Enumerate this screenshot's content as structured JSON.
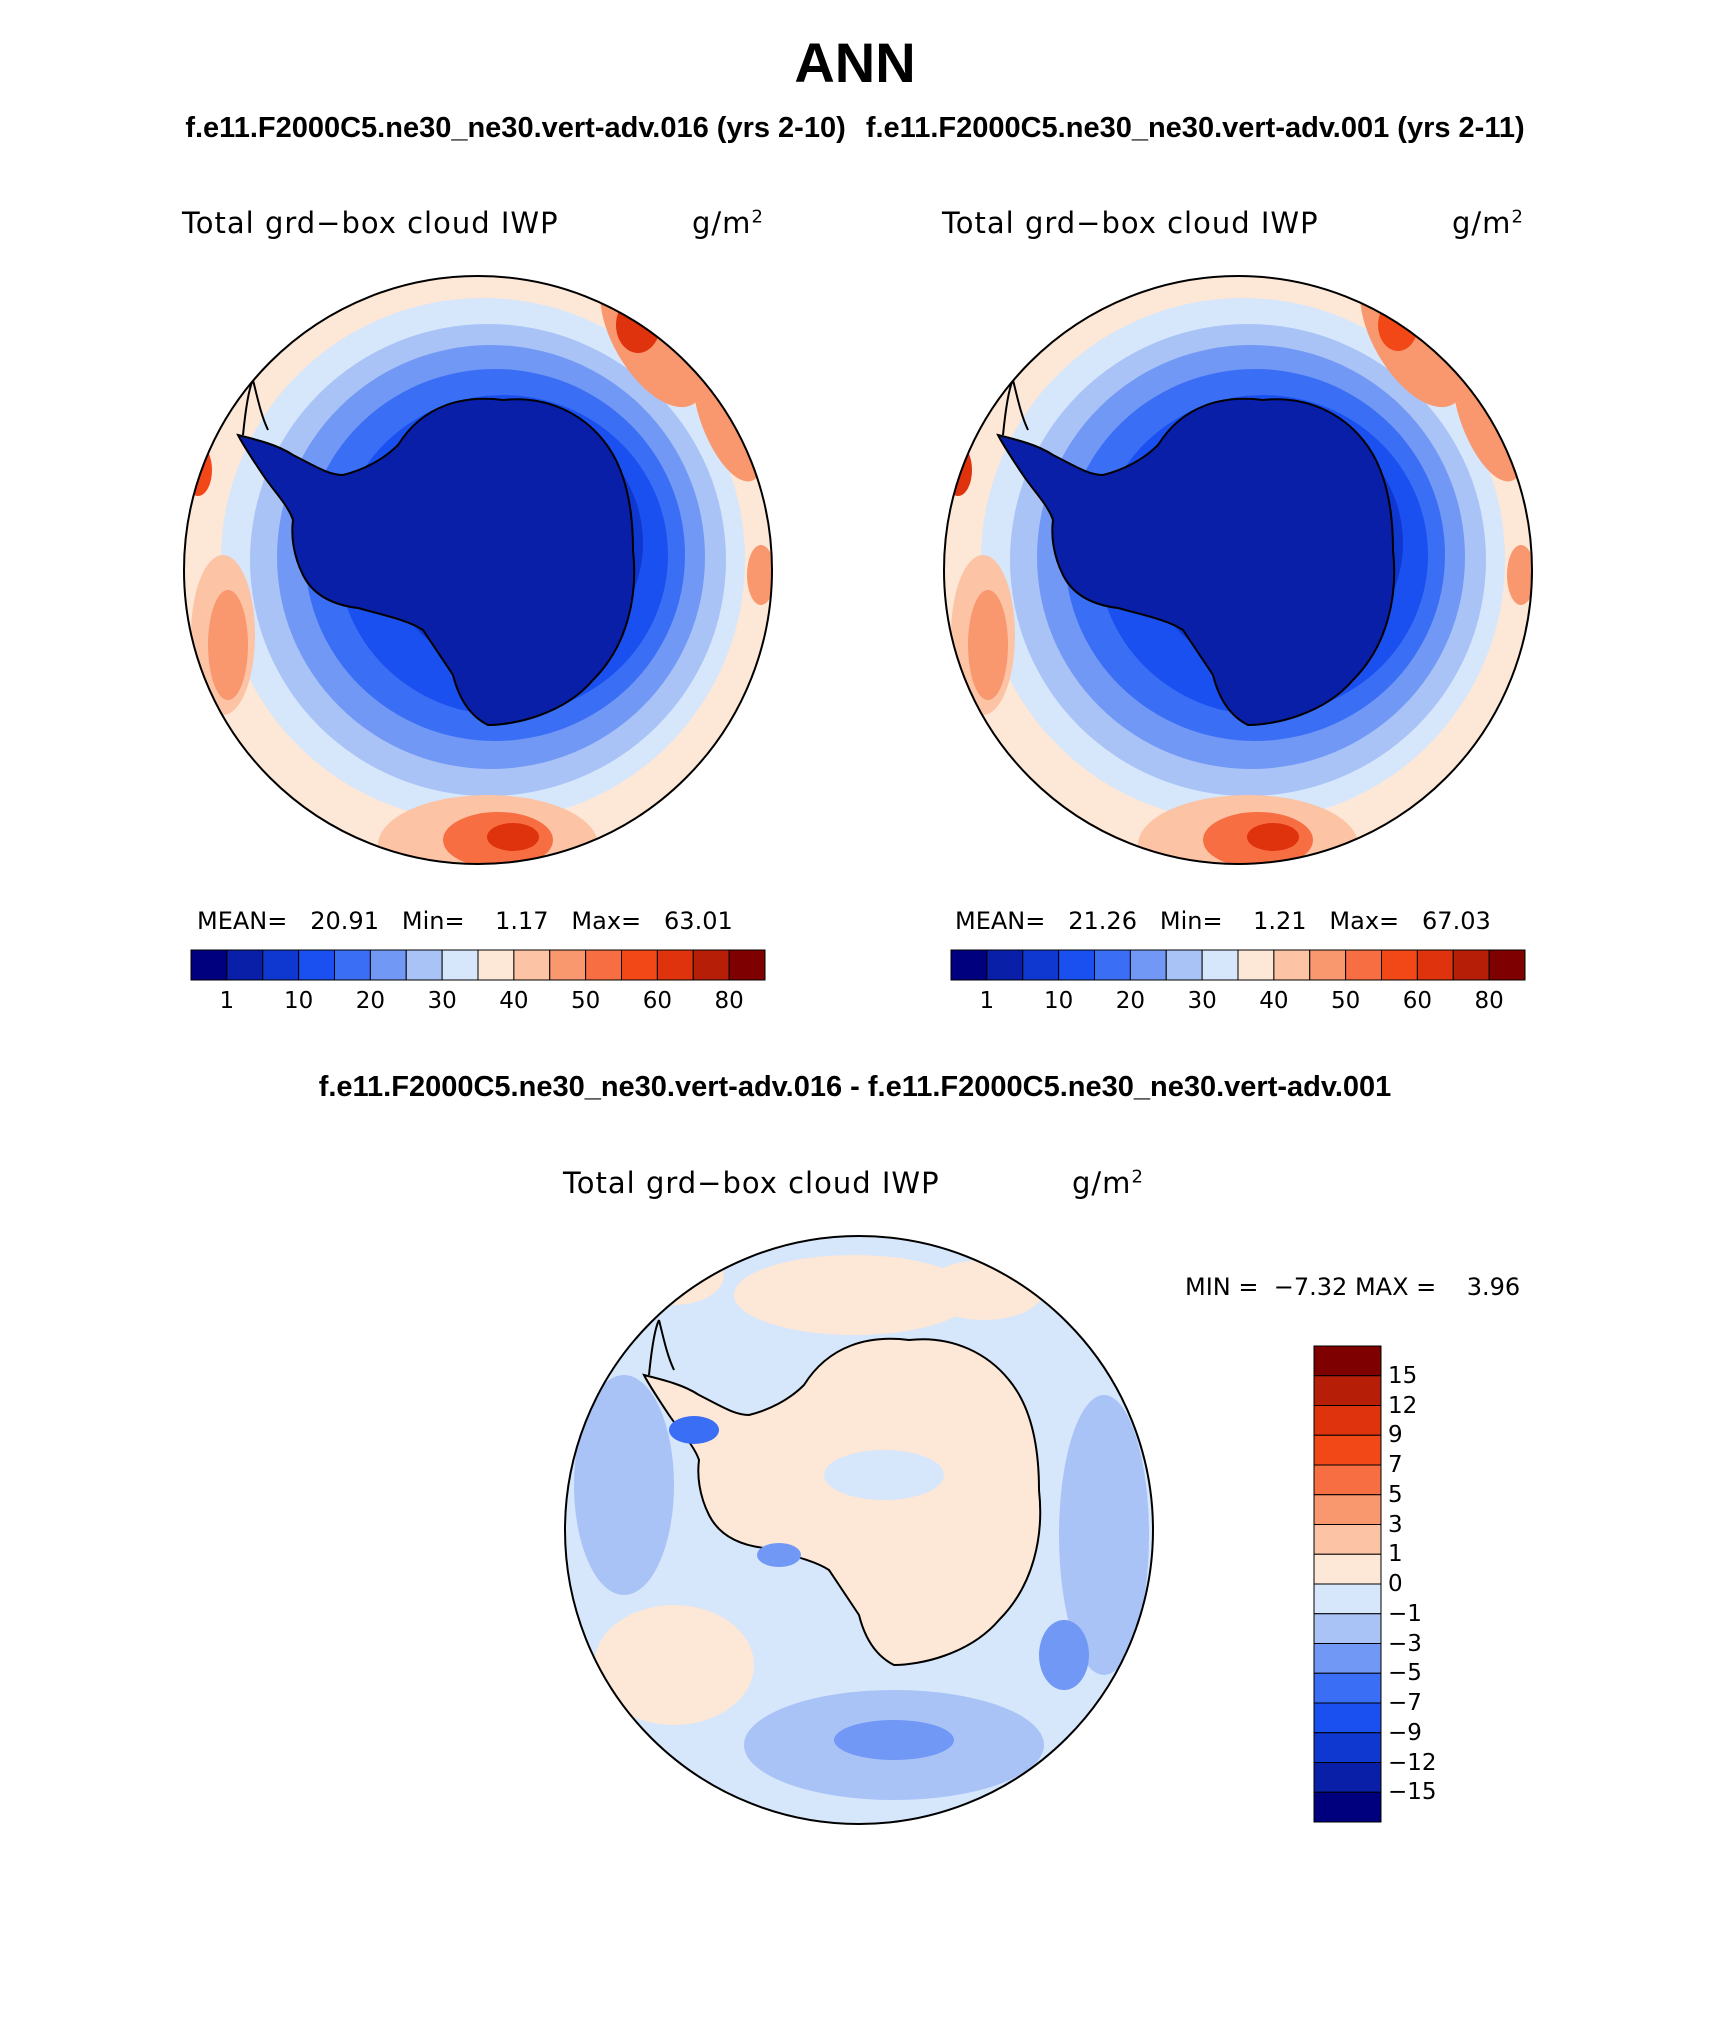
{
  "page": {
    "title": "ANN",
    "case_a": "f.e11.F2000C5.ne30_ne30.vert-adv.016 (yrs 2-10)",
    "case_b": "f.e11.F2000C5.ne30_ne30.vert-adv.001 (yrs 2-11)",
    "diff_title": "f.e11.F2000C5.ne30_ne30.vert-adv.016 - f.e11.F2000C5.ne30_ne30.vert-adv.001"
  },
  "colors": {
    "abs_scale": [
      "#00007f",
      "#0a1fa8",
      "#0f38d0",
      "#1b50f0",
      "#3a6ef5",
      "#7298f5",
      "#a9c3f7",
      "#d6e6fb",
      "#fde7d6",
      "#fcc3a5",
      "#f9976e",
      "#f76e42",
      "#f24818",
      "#de330d",
      "#b71e08",
      "#7f0000"
    ],
    "diff_scale": [
      "#00007f",
      "#0a1fa8",
      "#0f38d0",
      "#1b50f0",
      "#3a6ef5",
      "#7298f5",
      "#a9c3f7",
      "#d6e6fb",
      "#fde7d6",
      "#fcc3a5",
      "#f9976e",
      "#f76e42",
      "#f24818",
      "#de330d",
      "#b71e08",
      "#7f0000"
    ],
    "coastline": "#000000"
  },
  "chart_data": [
    {
      "type": "heatmap",
      "projection": "south-polar-stereographic",
      "title": "Total grd−box cloud IWP",
      "units_base": "g/m",
      "units_exp": "2",
      "stats": {
        "mean_label": "MEAN=",
        "mean": "20.91",
        "min_label": "Min=",
        "min": "1.17",
        "max_label": "Max=",
        "max": "63.01"
      },
      "colorbar": {
        "orientation": "horizontal",
        "levels": [
          "1",
          "10",
          "20",
          "30",
          "40",
          "50",
          "60",
          "80"
        ]
      }
    },
    {
      "type": "heatmap",
      "projection": "south-polar-stereographic",
      "title": "Total grd−box cloud IWP",
      "units_base": "g/m",
      "units_exp": "2",
      "stats": {
        "mean_label": "MEAN=",
        "mean": "21.26",
        "min_label": "Min=",
        "min": "1.21",
        "max_label": "Max=",
        "max": "67.03"
      },
      "colorbar": {
        "orientation": "horizontal",
        "levels": [
          "1",
          "10",
          "20",
          "30",
          "40",
          "50",
          "60",
          "80"
        ]
      }
    },
    {
      "type": "heatmap",
      "projection": "south-polar-stereographic",
      "title": "Total grd−box cloud IWP",
      "units_base": "g/m",
      "units_exp": "2",
      "stats": {
        "min_label": "MIN =",
        "min": "−7.32",
        "max_label": "MAX =",
        "max": "3.96"
      },
      "colorbar": {
        "orientation": "vertical",
        "levels": [
          "15",
          "12",
          "9",
          "7",
          "5",
          "3",
          "1",
          "0",
          "−1",
          "−3",
          "−5",
          "−7",
          "−9",
          "−12",
          "−15"
        ]
      }
    }
  ]
}
